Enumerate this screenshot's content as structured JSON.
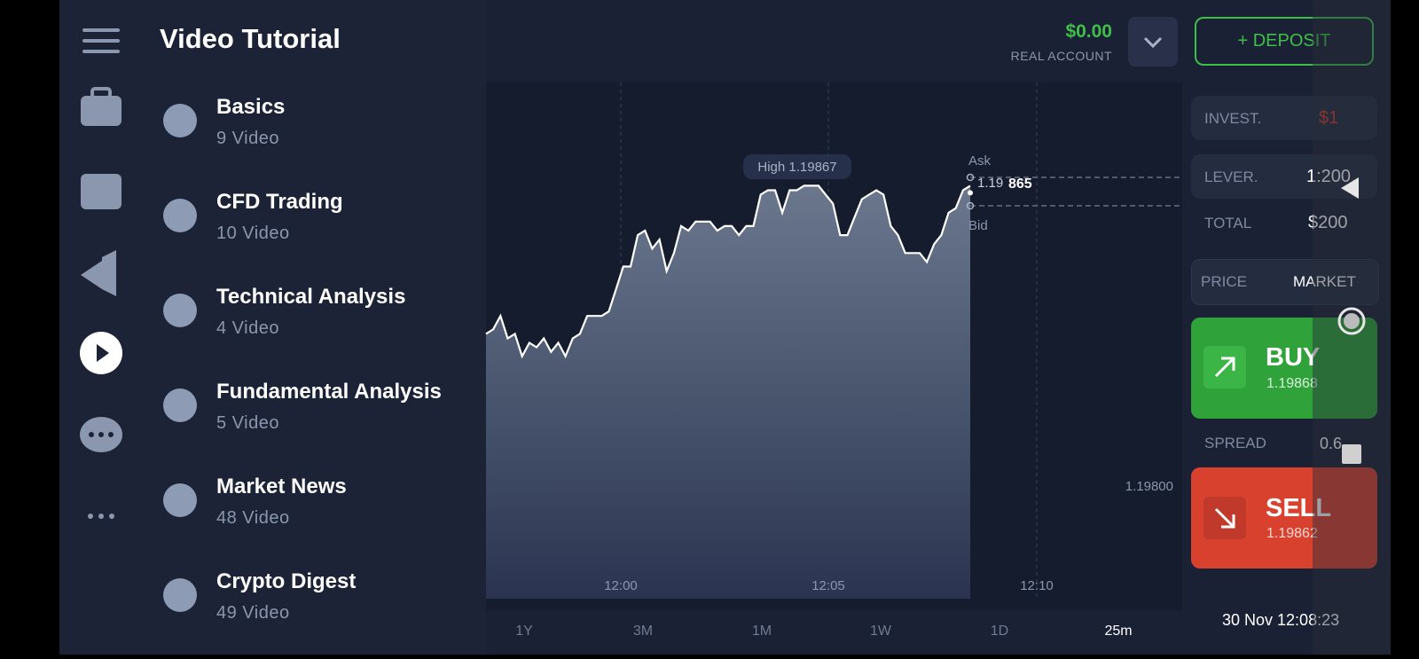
{
  "header": {
    "title": "Video Tutorial",
    "balance": "$0.00",
    "account": "REAL ACCOUNT",
    "deposit": "+ DEPOSIT"
  },
  "tutorials": [
    {
      "title": "Basics",
      "count": "9 Video"
    },
    {
      "title": "CFD Trading",
      "count": "10 Video"
    },
    {
      "title": "Technical Analysis",
      "count": "4 Video"
    },
    {
      "title": "Fundamental Analysis",
      "count": "5 Video"
    },
    {
      "title": "Market News",
      "count": "48 Video"
    },
    {
      "title": "Crypto Digest",
      "count": "49 Video"
    }
  ],
  "chart": {
    "high_label": "High 1.19867",
    "ask_label": "Ask",
    "ask_price_prefix": "1.19",
    "ask_price_suffix": "865",
    "bid_label": "Bid",
    "price_label": "1.19800",
    "time_labels": [
      "12:00",
      "12:05",
      "12:10"
    ],
    "ylim": [
      1.19775,
      1.1989
    ],
    "price_values": [
      1.19834,
      1.19835,
      1.19838,
      1.19833,
      1.19834,
      1.19829,
      1.19832,
      1.19831,
      1.19833,
      1.1983,
      1.19832,
      1.19829,
      1.19833,
      1.19834,
      1.19838,
      1.19838,
      1.19838,
      1.19839,
      1.19844,
      1.19849,
      1.19849,
      1.19856,
      1.19857,
      1.19853,
      1.19855,
      1.19848,
      1.19852,
      1.19858,
      1.19857,
      1.19859,
      1.19859,
      1.19859,
      1.19857,
      1.19858,
      1.19858,
      1.19856,
      1.19858,
      1.19858,
      1.19865,
      1.19866,
      1.19866,
      1.19861,
      1.19866,
      1.19866,
      1.19867,
      1.19867,
      1.19867,
      1.19865,
      1.19863,
      1.19856,
      1.19856,
      1.1986,
      1.19864,
      1.19865,
      1.19866,
      1.19865,
      1.19858,
      1.19856,
      1.19852,
      1.19852,
      1.19852,
      1.1985,
      1.19854,
      1.19856,
      1.19861,
      1.19862,
      1.19866,
      1.19867
    ]
  },
  "periods": [
    "1Y",
    "3M",
    "1M",
    "1W",
    "1D",
    "25m"
  ],
  "datetime": "30 Nov 12:08:23",
  "trade_panel": {
    "invest_label": "INVEST.",
    "invest_value": "$1",
    "leverage_label": "LEVER.",
    "leverage_value": "1:200",
    "total_label": "TOTAL",
    "total_value": "$200",
    "price_label": "PRICE",
    "price_mode": "MARKET",
    "buy_label": "BUY",
    "buy_price": "1.19868",
    "spread_label": "SPREAD",
    "spread_value": "0.6",
    "sell_label": "SELL",
    "sell_price": "1.19862"
  }
}
